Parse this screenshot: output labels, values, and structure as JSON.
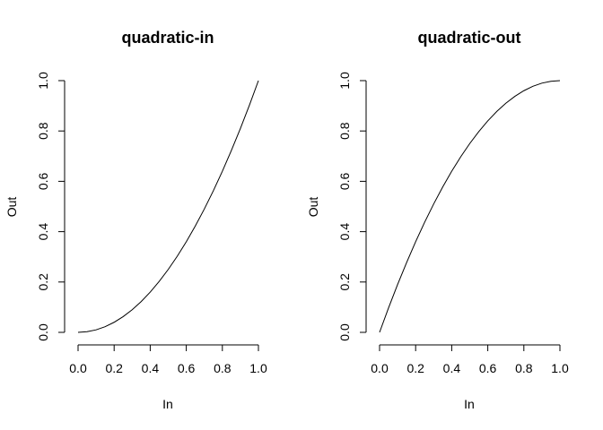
{
  "chart_data": [
    {
      "type": "line",
      "title": "quadratic-in",
      "xlabel": "In",
      "ylabel": "Out",
      "xlim": [
        0,
        1
      ],
      "ylim": [
        0,
        1
      ],
      "xticks": [
        "0.0",
        "0.2",
        "0.4",
        "0.6",
        "0.8",
        "1.0"
      ],
      "yticks": [
        "0.0",
        "0.2",
        "0.4",
        "0.6",
        "0.8",
        "1.0"
      ],
      "grid": false,
      "series": [
        {
          "x": [
            0.0,
            0.05,
            0.1,
            0.15,
            0.2,
            0.25,
            0.3,
            0.35,
            0.4,
            0.45,
            0.5,
            0.55,
            0.6,
            0.65,
            0.7,
            0.75,
            0.8,
            0.85,
            0.9,
            0.95,
            1.0
          ],
          "y": [
            0.0,
            0.0025,
            0.01,
            0.0225,
            0.04,
            0.0625,
            0.09,
            0.1225,
            0.16,
            0.2025,
            0.25,
            0.3025,
            0.36,
            0.4225,
            0.49,
            0.5625,
            0.64,
            0.7225,
            0.81,
            0.9025,
            1.0
          ]
        }
      ]
    },
    {
      "type": "line",
      "title": "quadratic-out",
      "xlabel": "In",
      "ylabel": "Out",
      "xlim": [
        0,
        1
      ],
      "ylim": [
        0,
        1
      ],
      "xticks": [
        "0.0",
        "0.2",
        "0.4",
        "0.6",
        "0.8",
        "1.0"
      ],
      "yticks": [
        "0.0",
        "0.2",
        "0.4",
        "0.6",
        "0.8",
        "1.0"
      ],
      "grid": false,
      "series": [
        {
          "x": [
            0.0,
            0.05,
            0.1,
            0.15,
            0.2,
            0.25,
            0.3,
            0.35,
            0.4,
            0.45,
            0.5,
            0.55,
            0.6,
            0.65,
            0.7,
            0.75,
            0.8,
            0.85,
            0.9,
            0.95,
            1.0
          ],
          "y": [
            0.0,
            0.0975,
            0.19,
            0.2775,
            0.36,
            0.4375,
            0.51,
            0.5775,
            0.64,
            0.6975,
            0.75,
            0.7975,
            0.84,
            0.8775,
            0.91,
            0.9375,
            0.96,
            0.9775,
            0.99,
            0.9975,
            1.0
          ]
        }
      ]
    }
  ]
}
